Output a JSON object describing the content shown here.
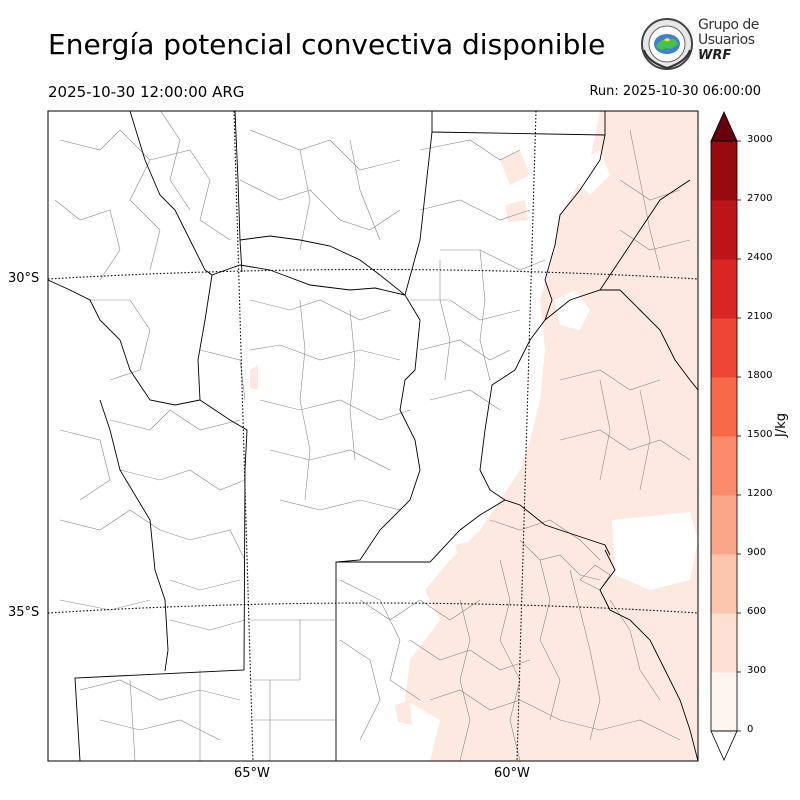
{
  "header": {
    "title": "Energía potencial convectiva disponible",
    "valid_time": "2025-10-30 12:00:00 ARG",
    "run_time": "Run: 2025-10-30 06:00:00"
  },
  "logo": {
    "line1": "Grupo de",
    "line2": "Usuarios",
    "line3": "WRF"
  },
  "map": {
    "variable": "CAPE",
    "lat_labels": [
      "30°S",
      "35°S"
    ],
    "lon_labels": [
      "65°W",
      "60°W"
    ],
    "colors": {
      "province_border": "#000000",
      "department_border": "#8a8a8a",
      "graticule": "#000000",
      "cape_low": "#fee9e0"
    }
  },
  "colorbar": {
    "unit": "J/kg",
    "ticks": [
      "0",
      "300",
      "600",
      "900",
      "1200",
      "1500",
      "1800",
      "2100",
      "2400",
      "2700",
      "3000"
    ],
    "colors": [
      "#fff5f0",
      "#fee0d2",
      "#fcc5ad",
      "#fca689",
      "#fb8a6a",
      "#f8694a",
      "#ef4534",
      "#d92623",
      "#bb151a",
      "#990a0f",
      "#7a0510",
      "#67000d"
    ]
  }
}
